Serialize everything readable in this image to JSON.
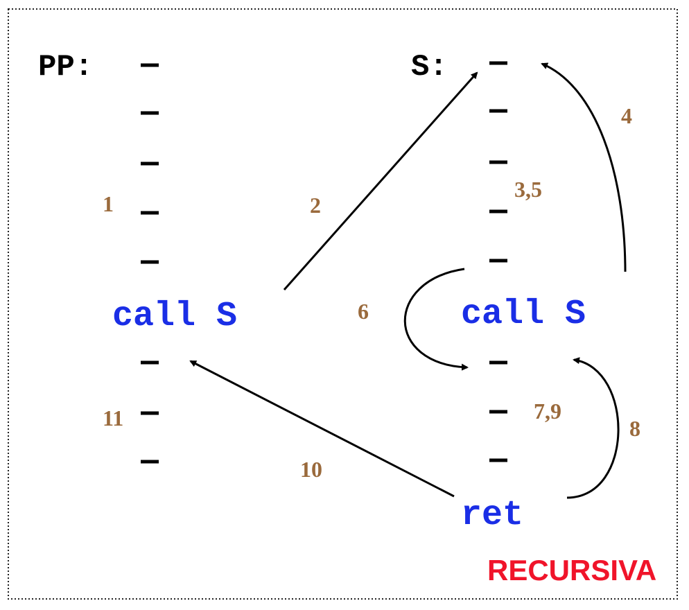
{
  "procedures": {
    "pp": {
      "label": "PP:",
      "call": "call S"
    },
    "s": {
      "label": "S:",
      "call": "call S",
      "ret": "ret"
    }
  },
  "instruction_mark": "–",
  "steps": {
    "s1": "1",
    "s2": "2",
    "s3_5": "3,5",
    "s4": "4",
    "s6": "6",
    "s7_9": "7,9",
    "s8": "8",
    "s10": "10",
    "s11": "11"
  },
  "caption": "RECURSIVA",
  "colors": {
    "code_label": "#000000",
    "call_text": "#1a2ee6",
    "step_number": "#9a6a3c",
    "caption": "#f0142a",
    "arrow": "#000000"
  }
}
